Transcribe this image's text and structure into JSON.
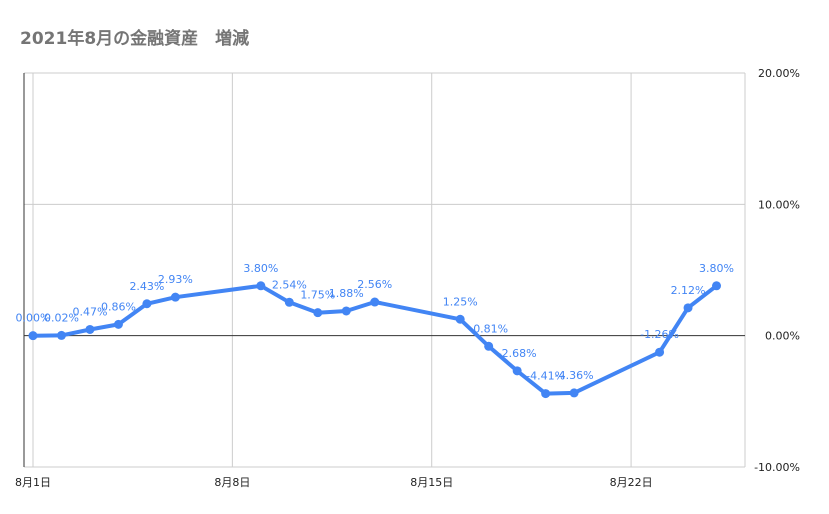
{
  "chart_data": {
    "type": "line",
    "title": "2021年8月の金融資産　増減",
    "xlabel": "",
    "ylabel": "",
    "x_tick_labels": [
      "8月1日",
      "8月8日",
      "8月15日",
      "8月22日"
    ],
    "x_tick_days": [
      1,
      8,
      15,
      22
    ],
    "y_tick_labels": [
      "20.00%",
      "10.00%",
      "0.00%",
      "-10.00%"
    ],
    "y_tick_values": [
      20,
      10,
      0,
      -10
    ],
    "ylim": [
      -10,
      20
    ],
    "xlim": [
      1,
      26
    ],
    "grid": true,
    "legend": "none",
    "series": [
      {
        "color": "#4285f4",
        "points": [
          {
            "day": 1,
            "value": 0.0,
            "label": "0.00%"
          },
          {
            "day": 2,
            "value": 0.02,
            "label": "0.02%"
          },
          {
            "day": 3,
            "value": 0.47,
            "label": "0.47%"
          },
          {
            "day": 4,
            "value": 0.86,
            "label": "0.86%"
          },
          {
            "day": 5,
            "value": 2.43,
            "label": "2.43%"
          },
          {
            "day": 6,
            "value": 2.93,
            "label": "2.93%"
          },
          {
            "day": 9,
            "value": 3.8,
            "label": "3.80%"
          },
          {
            "day": 10,
            "value": 2.54,
            "label": "2.54%"
          },
          {
            "day": 11,
            "value": 1.75,
            "label": "1.75%"
          },
          {
            "day": 12,
            "value": 1.88,
            "label": "1.88%"
          },
          {
            "day": 13,
            "value": 2.56,
            "label": "2.56%"
          },
          {
            "day": 16,
            "value": 1.25,
            "label": "1.25%"
          },
          {
            "day": 17,
            "value": -0.81,
            "label": "-0.81%"
          },
          {
            "day": 18,
            "value": -2.68,
            "label": "-2.68%"
          },
          {
            "day": 19,
            "value": -4.41,
            "label": "-4.41%"
          },
          {
            "day": 20,
            "value": -4.36,
            "label": "-4.36%"
          },
          {
            "day": 23,
            "value": -1.26,
            "label": "-1.26%"
          },
          {
            "day": 24,
            "value": 2.12,
            "label": "2.12%"
          },
          {
            "day": 25,
            "value": 3.8,
            "label": "3.80%"
          }
        ]
      }
    ]
  }
}
